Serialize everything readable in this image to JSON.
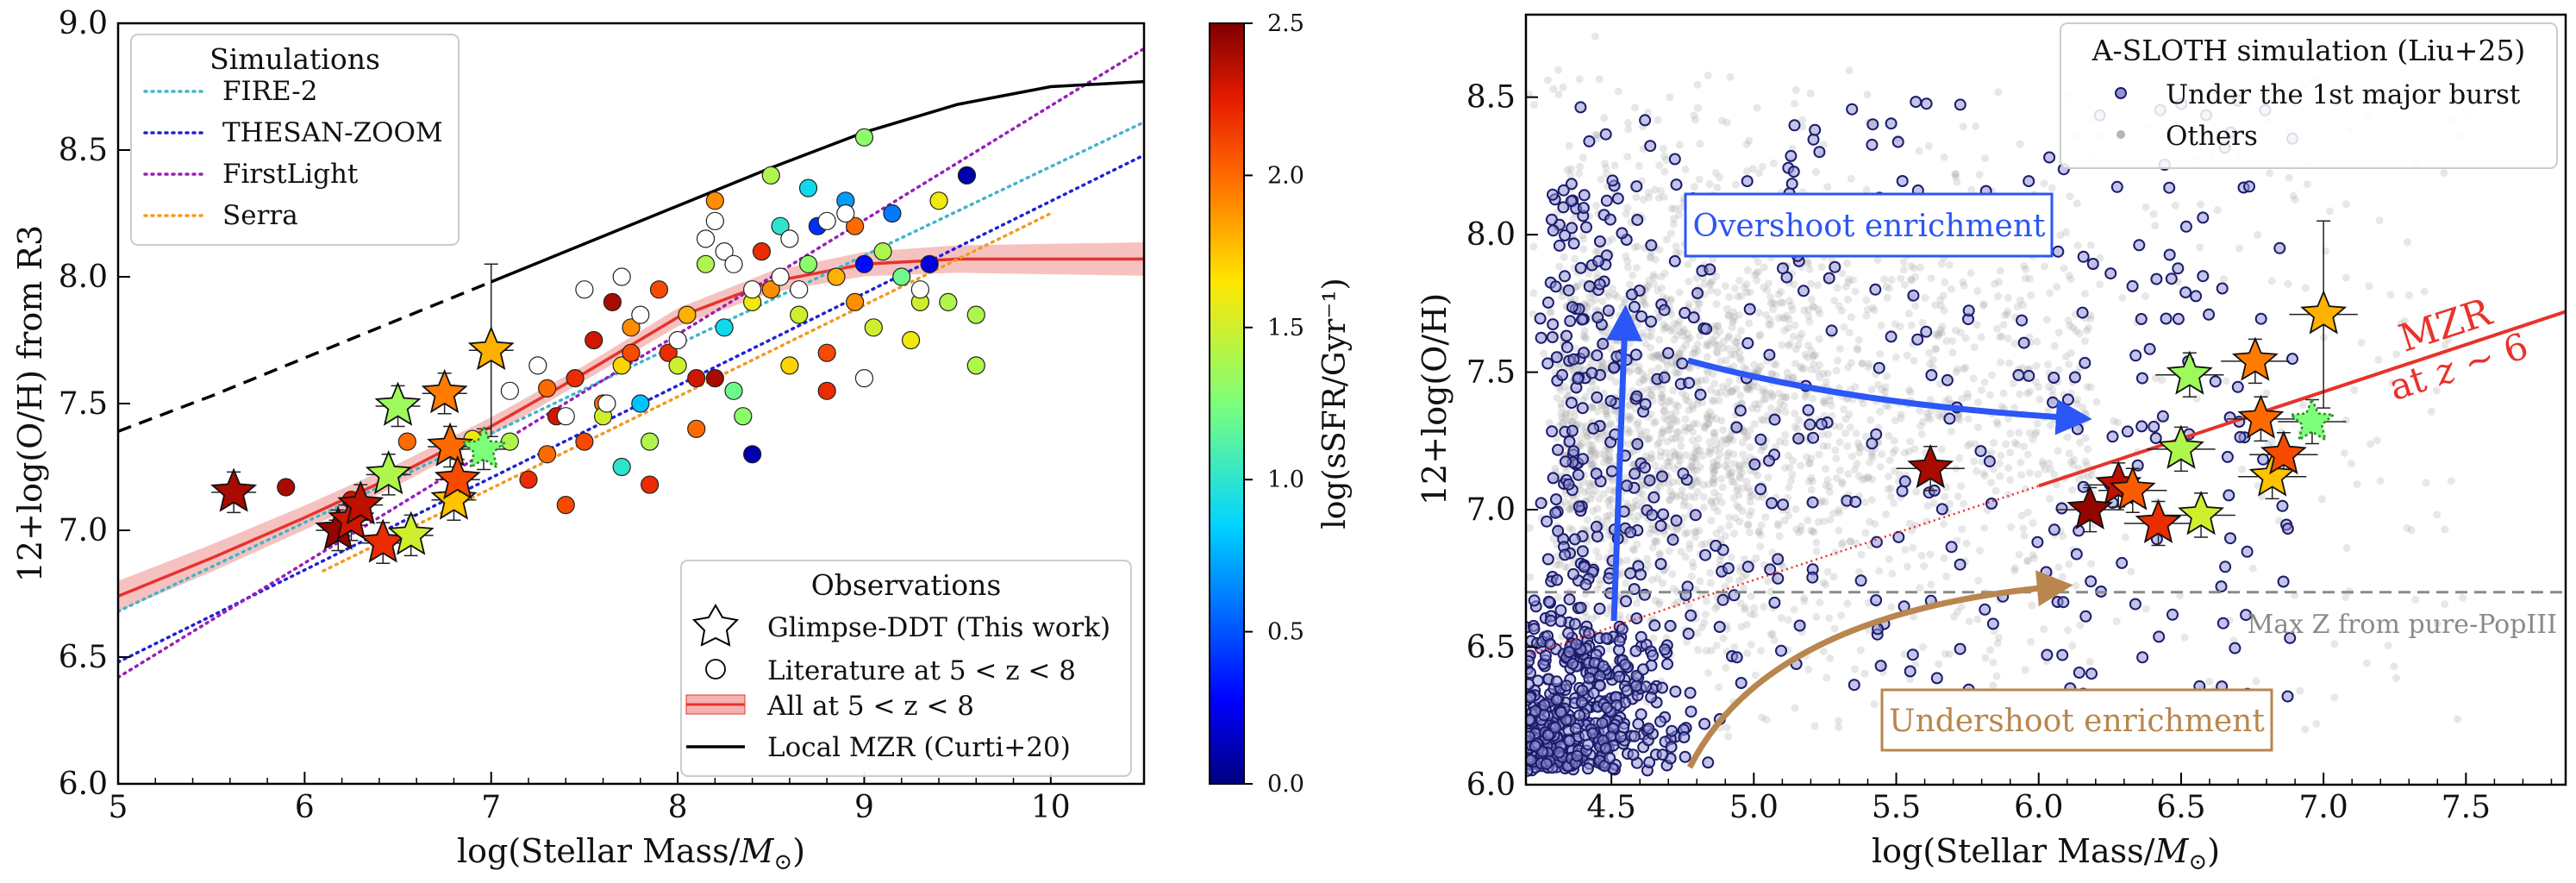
{
  "chart_data": [
    {
      "type": "scatter",
      "panel": "left",
      "xlabel_main": "log(Stellar Mass/",
      "xlabel_unit": "M",
      "xlabel_sub": "⊙",
      "xlabel_end": ")",
      "ylabel": "12+log(O/H) from R3",
      "xlim": [
        5,
        10.5
      ],
      "ylim": [
        6.0,
        9.0
      ],
      "xticks": [
        "5",
        "6",
        "7",
        "8",
        "9",
        "10"
      ],
      "yticks": [
        "6.0",
        "6.5",
        "7.0",
        "7.5",
        "8.0",
        "8.5",
        "9.0"
      ],
      "simulations_legend": {
        "title": "Simulations",
        "entries": [
          {
            "name": "FIRE-2",
            "color": "#3fb6c8"
          },
          {
            "name": "THESAN-ZOOM",
            "color": "#1f22d6"
          },
          {
            "name": "FirstLight",
            "color": "#9a1fb8"
          },
          {
            "name": "Serra",
            "color": "#f39a22"
          }
        ]
      },
      "observations_legend": {
        "title": "Observations",
        "entries": [
          {
            "name": "Glimpse-DDT (This work)",
            "marker": "star"
          },
          {
            "name": "Literature at 5 < z < 8",
            "marker": "circle"
          },
          {
            "name": "All at 5 < z < 8",
            "marker": "band"
          },
          {
            "name": "Local MZR (Curti+20)",
            "marker": "line"
          }
        ]
      },
      "colorbar": {
        "label": "log(sSFR/Gyr⁻¹)",
        "range": [
          0.0,
          2.5
        ],
        "ticks": [
          "0.0",
          "0.5",
          "1.0",
          "1.5",
          "2.0",
          "2.5"
        ]
      },
      "series": [
        {
          "name": "FIRE-2",
          "style": "dotted",
          "color": "#3fb6c8",
          "x": [
            5.0,
            10.5
          ],
          "y": [
            6.68,
            8.61
          ]
        },
        {
          "name": "THESAN-ZOOM",
          "style": "dotted",
          "color": "#1f22d6",
          "x": [
            5.0,
            10.5
          ],
          "y": [
            6.48,
            8.48
          ]
        },
        {
          "name": "FirstLight",
          "style": "dotted",
          "color": "#9a1fb8",
          "x": [
            5.0,
            10.5
          ],
          "y": [
            6.42,
            8.9
          ]
        },
        {
          "name": "Serra",
          "style": "dotted",
          "color": "#f39a22",
          "x": [
            6.1,
            10.0
          ],
          "y": [
            6.84,
            8.25
          ]
        },
        {
          "name": "Local MZR (Curti+20)",
          "style": "solid-dashed",
          "color": "#000000",
          "x": [
            5.0,
            5.5,
            6.0,
            6.5,
            7.0,
            7.5,
            8.0,
            8.5,
            9.0,
            9.5,
            10.0,
            10.5
          ],
          "y": [
            7.39,
            7.53,
            7.68,
            7.83,
            7.98,
            8.13,
            8.28,
            8.43,
            8.57,
            8.68,
            8.75,
            8.77
          ]
        },
        {
          "name": "All at 5 < z < 8",
          "style": "solid-band",
          "color": "#e8322c",
          "x": [
            5.0,
            5.5,
            6.0,
            6.5,
            7.0,
            7.5,
            8.0,
            8.5,
            9.0,
            9.5,
            10.0,
            10.5
          ],
          "y": [
            6.74,
            6.89,
            7.05,
            7.22,
            7.41,
            7.62,
            7.84,
            7.98,
            8.05,
            8.07,
            8.07,
            8.07
          ]
        }
      ],
      "stars": [
        {
          "x": 5.62,
          "y": 7.15,
          "c": 2.4
        },
        {
          "x": 6.18,
          "y": 7.0,
          "c": 2.45
        },
        {
          "x": 6.25,
          "y": 7.04,
          "c": 2.3
        },
        {
          "x": 6.3,
          "y": 7.1,
          "c": 2.35
        },
        {
          "x": 6.42,
          "y": 6.95,
          "c": 2.2
        },
        {
          "x": 6.45,
          "y": 7.22,
          "c": 1.4
        },
        {
          "x": 6.5,
          "y": 7.49,
          "c": 1.35
        },
        {
          "x": 6.57,
          "y": 6.98,
          "c": 1.5
        },
        {
          "x": 6.75,
          "y": 7.54,
          "c": 1.95
        },
        {
          "x": 6.78,
          "y": 7.33,
          "c": 2.0
        },
        {
          "x": 6.8,
          "y": 7.12,
          "c": 1.75
        },
        {
          "x": 6.82,
          "y": 7.2,
          "c": 2.1
        },
        {
          "x": 6.96,
          "y": 7.32,
          "c": 1.25
        },
        {
          "x": 7.0,
          "y": 7.71,
          "c": 1.8
        }
      ],
      "literature": [
        {
          "x": 5.9,
          "y": 7.17,
          "c": 2.4
        },
        {
          "x": 6.25,
          "y": 7.12,
          "c": 2.3
        },
        {
          "x": 6.55,
          "y": 7.35,
          "c": 2.0
        },
        {
          "x": 6.9,
          "y": 7.36,
          "c": 1.6
        },
        {
          "x": 7.1,
          "y": 7.35,
          "c": 1.4
        },
        {
          "x": 7.2,
          "y": 7.2,
          "c": 2.2
        },
        {
          "x": 7.3,
          "y": 7.3,
          "c": 2.0
        },
        {
          "x": 7.35,
          "y": 7.45,
          "c": 2.3
        },
        {
          "x": 7.4,
          "y": 7.1,
          "c": 2.1
        },
        {
          "x": 7.45,
          "y": 7.6,
          "c": 2.2
        },
        {
          "x": 7.5,
          "y": 7.35,
          "c": 2.1
        },
        {
          "x": 7.55,
          "y": 7.75,
          "c": 2.3
        },
        {
          "x": 7.6,
          "y": 7.5,
          "c": 2.0
        },
        {
          "x": 7.65,
          "y": 7.9,
          "c": 2.4
        },
        {
          "x": 7.7,
          "y": 7.65,
          "c": 1.7
        },
        {
          "x": 7.75,
          "y": 7.8,
          "c": 1.9
        },
        {
          "x": 7.8,
          "y": 7.5,
          "c": 0.8
        },
        {
          "x": 7.85,
          "y": 7.35,
          "c": 1.4
        },
        {
          "x": 7.9,
          "y": 7.95,
          "c": 2.1
        },
        {
          "x": 7.95,
          "y": 7.7,
          "c": 2.2
        },
        {
          "x": 8.0,
          "y": 7.65,
          "c": 1.5
        },
        {
          "x": 8.05,
          "y": 7.85,
          "c": 1.8
        },
        {
          "x": 8.1,
          "y": 7.4,
          "c": 2.0
        },
        {
          "x": 8.15,
          "y": 8.05,
          "c": 1.4
        },
        {
          "x": 8.2,
          "y": 7.6,
          "c": 2.4
        },
        {
          "x": 8.25,
          "y": 7.8,
          "c": 0.9
        },
        {
          "x": 8.3,
          "y": 7.55,
          "c": 1.2
        },
        {
          "x": 8.35,
          "y": 7.45,
          "c": 1.3
        },
        {
          "x": 8.4,
          "y": 7.9,
          "c": 1.6
        },
        {
          "x": 8.45,
          "y": 8.1,
          "c": 2.2
        },
        {
          "x": 8.5,
          "y": 7.95,
          "c": 1.9
        },
        {
          "x": 8.55,
          "y": 8.2,
          "c": 1.0
        },
        {
          "x": 8.6,
          "y": 7.65,
          "c": 1.7
        },
        {
          "x": 8.65,
          "y": 7.85,
          "c": 1.5
        },
        {
          "x": 8.7,
          "y": 8.05,
          "c": 1.3
        },
        {
          "x": 8.75,
          "y": 8.2,
          "c": 0.4
        },
        {
          "x": 8.8,
          "y": 7.7,
          "c": 2.1
        },
        {
          "x": 8.85,
          "y": 8.0,
          "c": 1.8
        },
        {
          "x": 8.9,
          "y": 8.3,
          "c": 0.7
        },
        {
          "x": 8.95,
          "y": 7.9,
          "c": 1.9
        },
        {
          "x": 9.0,
          "y": 8.05,
          "c": 0.3
        },
        {
          "x": 9.05,
          "y": 7.8,
          "c": 1.5
        },
        {
          "x": 9.1,
          "y": 8.1,
          "c": 1.4
        },
        {
          "x": 9.15,
          "y": 8.25,
          "c": 0.6
        },
        {
          "x": 9.2,
          "y": 8.0,
          "c": 1.2
        },
        {
          "x": 9.25,
          "y": 7.75,
          "c": 1.6
        },
        {
          "x": 9.3,
          "y": 7.9,
          "c": 1.5
        },
        {
          "x": 9.35,
          "y": 8.05,
          "c": 0.2
        },
        {
          "x": 9.4,
          "y": 8.3,
          "c": 1.6
        },
        {
          "x": 9.45,
          "y": 7.9,
          "c": 1.4
        },
        {
          "x": 9.55,
          "y": 8.4,
          "c": 0.1
        },
        {
          "x": 9.6,
          "y": 7.85,
          "c": 1.4
        },
        {
          "x": 9.0,
          "y": 8.55,
          "c": 1.3
        },
        {
          "x": 8.5,
          "y": 8.4,
          "c": 1.4
        },
        {
          "x": 7.7,
          "y": 7.25,
          "c": 1.0
        },
        {
          "x": 7.6,
          "y": 7.45,
          "c": 1.5
        },
        {
          "x": 8.8,
          "y": 7.55,
          "c": 2.2
        },
        {
          "x": 9.6,
          "y": 7.65,
          "c": 1.4
        },
        {
          "x": 7.75,
          "y": 7.7,
          "c": 2.1
        },
        {
          "x": 8.4,
          "y": 7.3,
          "c": 0.1
        },
        {
          "x": 7.85,
          "y": 7.18,
          "c": 2.2
        },
        {
          "x": 7.3,
          "y": 7.56,
          "c": 2.0
        },
        {
          "x": 8.1,
          "y": 7.6,
          "c": 2.3
        },
        {
          "x": 8.95,
          "y": 8.2,
          "c": 2.0
        },
        {
          "x": 8.7,
          "y": 8.35,
          "c": 0.9
        },
        {
          "x": 8.2,
          "y": 8.3,
          "c": 1.9
        }
      ],
      "literature_open": [
        {
          "x": 7.1,
          "y": 7.55
        },
        {
          "x": 7.25,
          "y": 7.65
        },
        {
          "x": 7.4,
          "y": 7.45
        },
        {
          "x": 7.5,
          "y": 7.95
        },
        {
          "x": 7.62,
          "y": 7.5
        },
        {
          "x": 7.7,
          "y": 8.0
        },
        {
          "x": 7.8,
          "y": 7.85
        },
        {
          "x": 8.0,
          "y": 7.75
        },
        {
          "x": 8.15,
          "y": 8.15
        },
        {
          "x": 8.2,
          "y": 8.22
        },
        {
          "x": 8.25,
          "y": 8.1
        },
        {
          "x": 8.4,
          "y": 7.95
        },
        {
          "x": 8.55,
          "y": 8.0
        },
        {
          "x": 8.65,
          "y": 7.95
        },
        {
          "x": 8.8,
          "y": 8.22
        },
        {
          "x": 8.9,
          "y": 8.25
        },
        {
          "x": 9.0,
          "y": 7.6
        },
        {
          "x": 9.3,
          "y": 7.95
        },
        {
          "x": 8.6,
          "y": 8.15
        },
        {
          "x": 8.3,
          "y": 8.05
        }
      ]
    },
    {
      "type": "scatter",
      "panel": "right",
      "xlabel_main": "log(Stellar Mass/",
      "xlabel_unit": "M",
      "xlabel_sub": "⊙",
      "xlabel_end": ")",
      "ylabel": "12+log(O/H)",
      "xlim": [
        4.2,
        7.85
      ],
      "ylim": [
        6.0,
        8.8
      ],
      "xticks": [
        "4.5",
        "5.0",
        "5.5",
        "6.0",
        "6.5",
        "7.0",
        "7.5"
      ],
      "yticks": [
        "6.0",
        "6.5",
        "7.0",
        "7.5",
        "8.0",
        "8.5"
      ],
      "legend": {
        "title": "A-SLOTH simulation (Liu+25)",
        "entries": [
          {
            "name": "Under the 1st major burst",
            "marker": "open-circle-navy"
          },
          {
            "name": "Others",
            "marker": "grey-dot"
          }
        ]
      },
      "annotations": {
        "overshoot": "Overshoot enrichment",
        "undershoot": "Undershoot enrichment",
        "maxz": "Max Z from pure-PopIII",
        "mzr_main": "MZR",
        "mzr_sub_a": "at",
        "mzr_sub_z": "z",
        "mzr_sub_b": "∼ 6"
      },
      "maxz_level": 6.7,
      "mzr_line": {
        "x": [
          4.2,
          7.85
        ],
        "y": [
          6.47,
          7.72
        ],
        "color": "#e8322c"
      },
      "stars": [
        {
          "x": 5.62,
          "y": 7.15,
          "c": 2.4
        },
        {
          "x": 6.18,
          "y": 7.0,
          "c": 2.45
        },
        {
          "x": 6.28,
          "y": 7.09,
          "c": 2.35
        },
        {
          "x": 6.33,
          "y": 7.07,
          "c": 2.05
        },
        {
          "x": 6.42,
          "y": 6.95,
          "c": 2.2
        },
        {
          "x": 6.5,
          "y": 7.22,
          "c": 1.4
        },
        {
          "x": 6.53,
          "y": 7.49,
          "c": 1.35
        },
        {
          "x": 6.57,
          "y": 6.98,
          "c": 1.5
        },
        {
          "x": 6.76,
          "y": 7.54,
          "c": 1.95
        },
        {
          "x": 6.78,
          "y": 7.33,
          "c": 2.0
        },
        {
          "x": 6.82,
          "y": 7.12,
          "c": 1.75
        },
        {
          "x": 6.86,
          "y": 7.2,
          "c": 2.1
        },
        {
          "x": 6.96,
          "y": 7.32,
          "c": 1.25
        },
        {
          "x": 7.0,
          "y": 7.71,
          "c": 1.8
        }
      ]
    }
  ]
}
